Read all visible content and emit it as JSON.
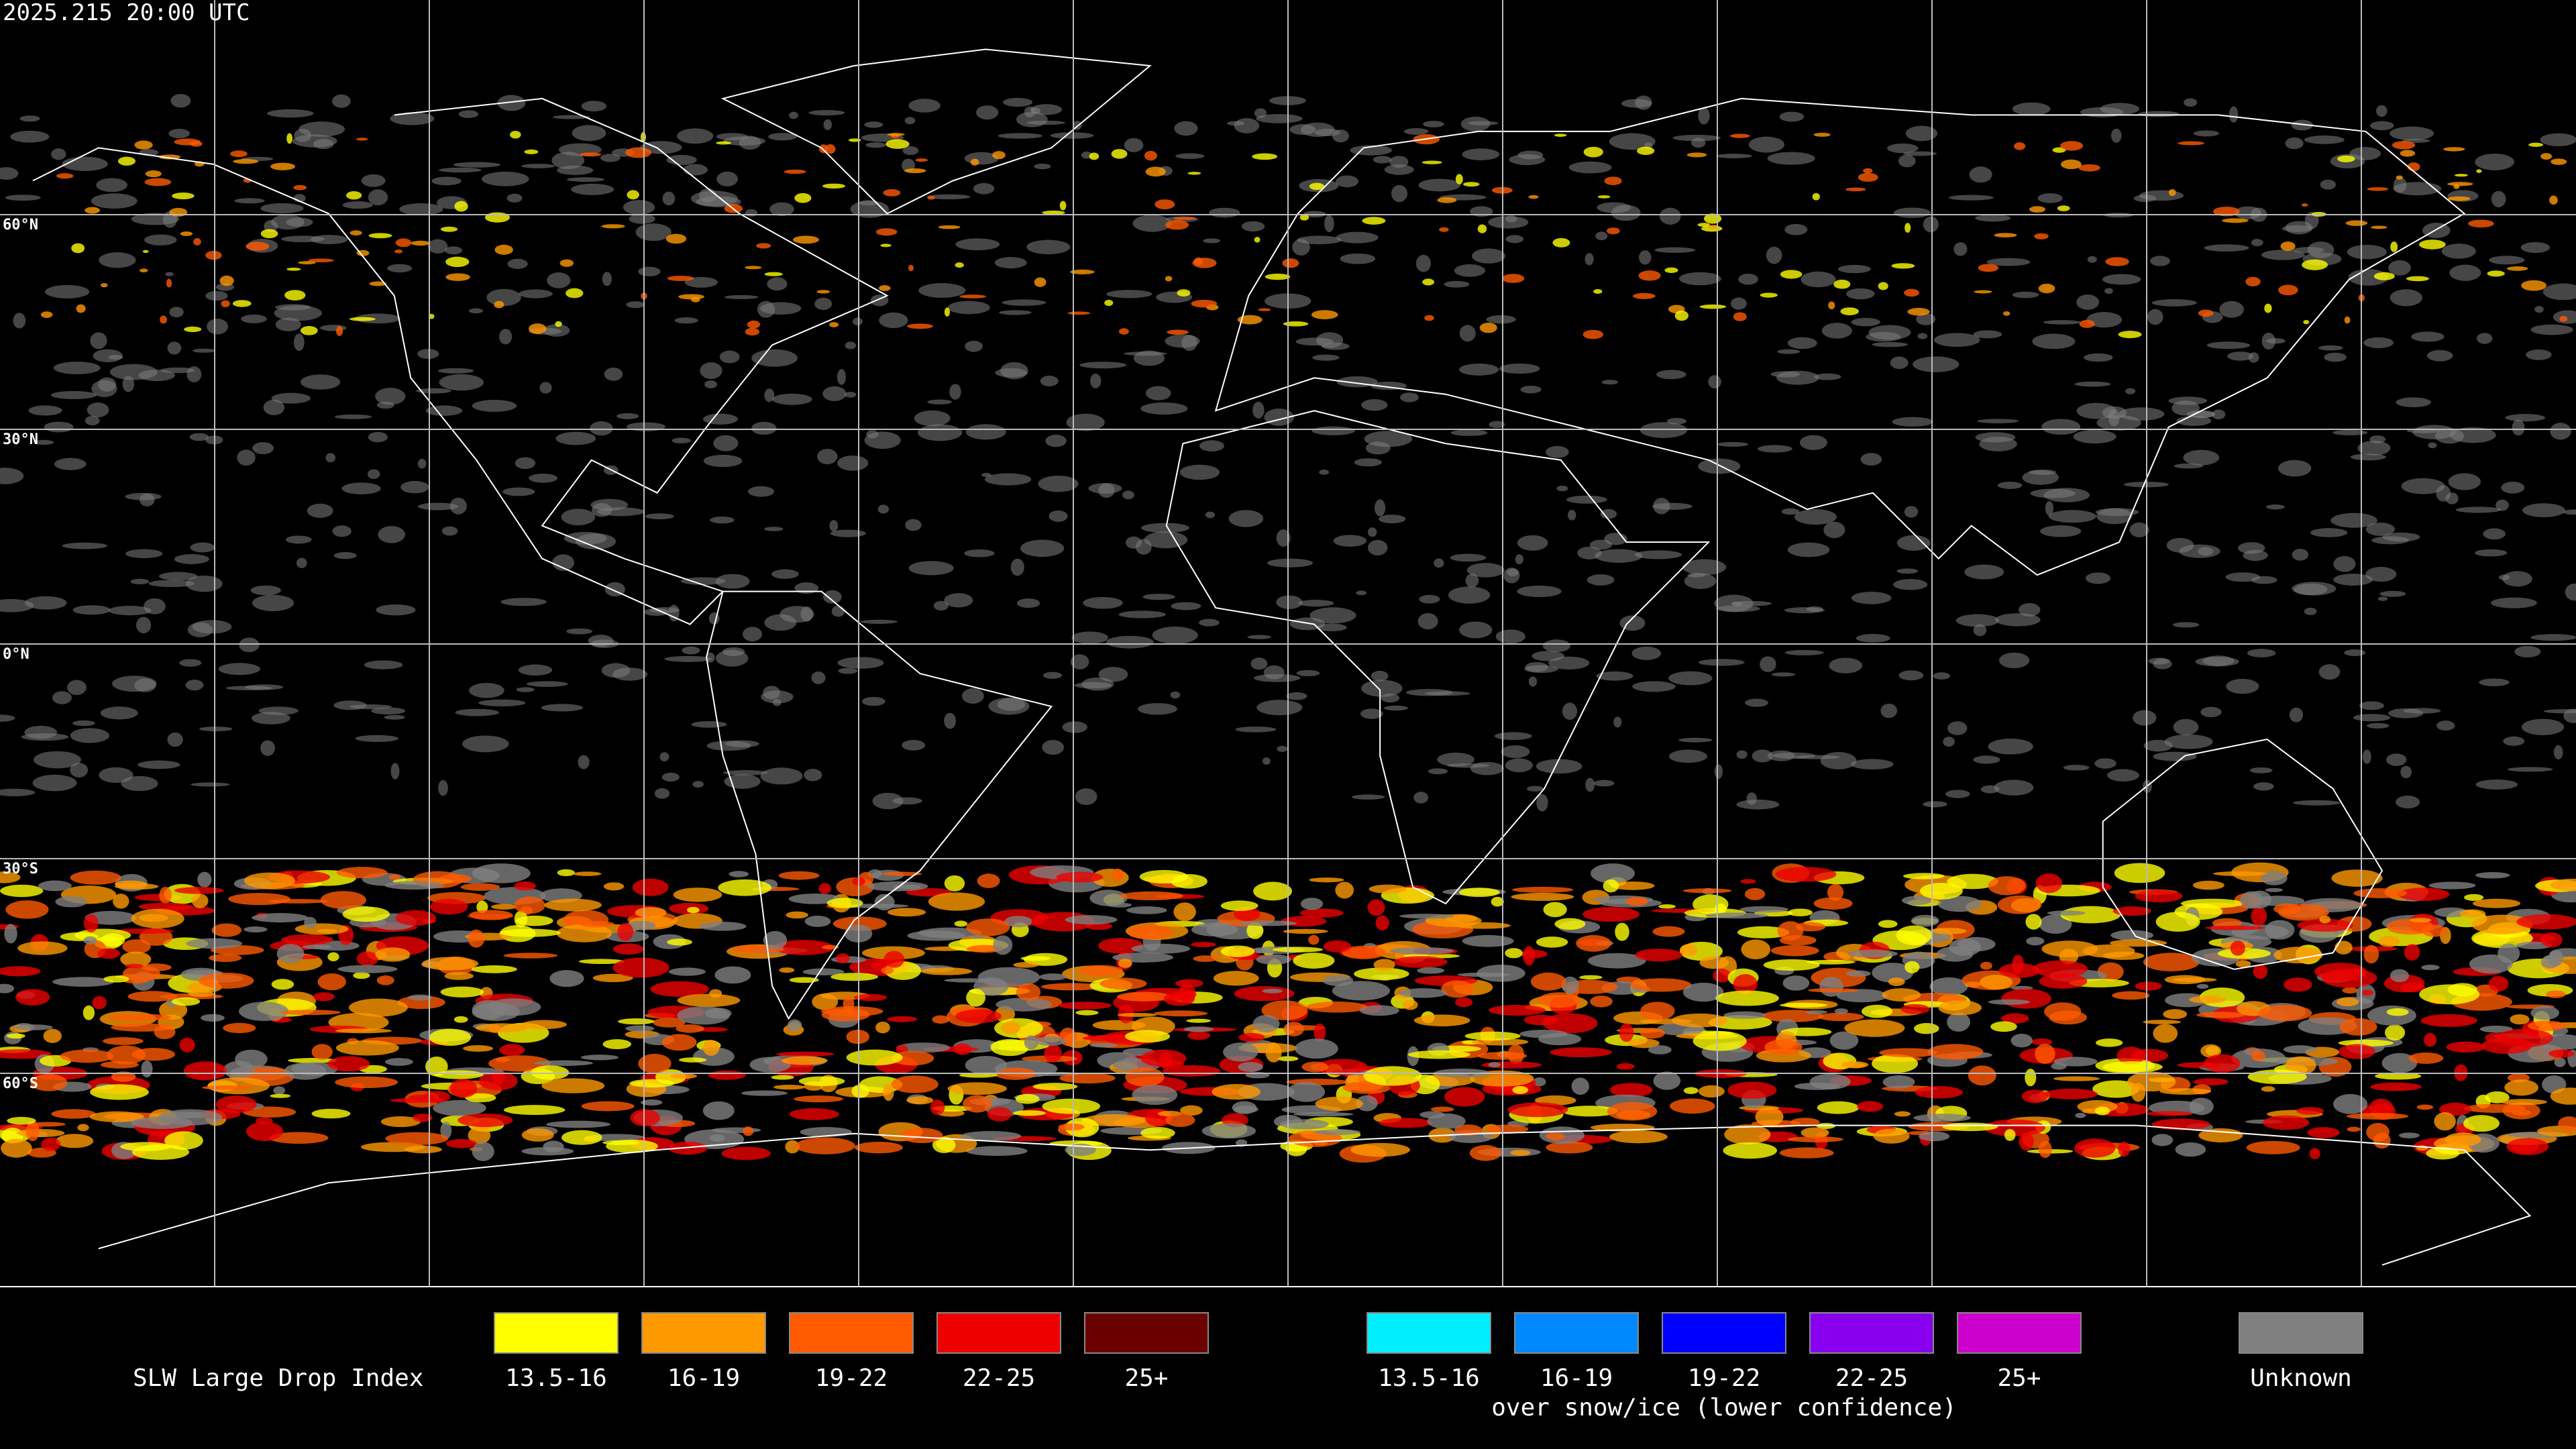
{
  "title": "2025.215 20:00 UTC",
  "latitude_labels": [
    "60°N",
    "30°N",
    "0°N",
    "30°S",
    "60°S"
  ],
  "legend": {
    "title": "SLW Large Drop Index",
    "groups": [
      {
        "items": [
          {
            "label": "13.5-16",
            "color": "#ffff00"
          },
          {
            "label": "16-19",
            "color": "#ff9900"
          },
          {
            "label": "19-22",
            "color": "#ff5a00"
          },
          {
            "label": "22-25",
            "color": "#ee0000"
          },
          {
            "label": "25+",
            "color": "#6b0000"
          }
        ]
      },
      {
        "items": [
          {
            "label": "13.5-16",
            "color": "#00eeff"
          },
          {
            "label": "16-19",
            "color": "#0088ff"
          },
          {
            "label": "19-22",
            "color": "#0000ff"
          },
          {
            "label": "22-25",
            "color": "#8800ee"
          },
          {
            "label": "25+",
            "color": "#cc00cc"
          }
        ],
        "note": "over snow/ice (lower confidence)"
      }
    ],
    "unknown": {
      "label": "Unknown",
      "color": "#808080"
    }
  }
}
